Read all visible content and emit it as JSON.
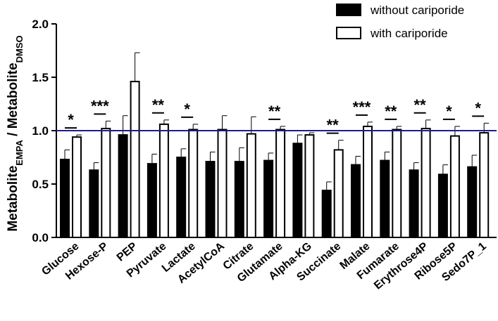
{
  "chart_data": {
    "type": "bar",
    "ylabel": {
      "parts": [
        {
          "text": "Metabolite",
          "sub": false
        },
        {
          "text": "EMPA",
          "sub": true
        },
        {
          "text": " / Metabolite",
          "sub": false
        },
        {
          "text": "DMSO",
          "sub": true
        }
      ]
    },
    "xlabel": "",
    "ylim": [
      0,
      2.0
    ],
    "yticks": [
      "0.0",
      "0.5",
      "1.0",
      "1.5",
      "2.0"
    ],
    "ytick_values": [
      0,
      0.5,
      1.0,
      1.5,
      2.0
    ],
    "reference_line": 1.0,
    "categories": [
      "Glucose",
      "Hexose-P",
      "PEP",
      "Pyruvate",
      "Lactate",
      "AcetylCoA",
      "Citrate",
      "Glutamate",
      "Alpha-KG",
      "Succinate",
      "Malate",
      "Fumarate",
      "Erythrose4P",
      "Ribose5P",
      "Sedo7P_1"
    ],
    "series": [
      {
        "name": "without cariporide",
        "fill": "#000000",
        "values": [
          0.73,
          0.63,
          0.96,
          0.69,
          0.75,
          0.71,
          0.71,
          0.72,
          0.88,
          0.44,
          0.68,
          0.72,
          0.63,
          0.59,
          0.66
        ],
        "errors": [
          0.09,
          0.07,
          0.18,
          0.09,
          0.08,
          0.09,
          0.13,
          0.07,
          0.08,
          0.08,
          0.08,
          0.08,
          0.07,
          0.09,
          0.11
        ]
      },
      {
        "name": "with cariporide",
        "fill": "#ffffff",
        "values": [
          0.94,
          1.02,
          1.46,
          1.06,
          1.01,
          1.01,
          0.97,
          1.01,
          0.96,
          0.82,
          1.04,
          1.01,
          1.02,
          0.95,
          0.98
        ],
        "errors": [
          0.02,
          0.07,
          0.27,
          0.04,
          0.05,
          0.13,
          0.16,
          0.03,
          0.02,
          0.09,
          0.04,
          0.03,
          0.08,
          0.09,
          0.09
        ]
      }
    ],
    "significance": [
      "*",
      "***",
      "",
      "**",
      "*",
      "",
      "",
      "**",
      "",
      "**",
      "***",
      "**",
      "**",
      "*",
      "*"
    ],
    "legend": {
      "position": "top-right"
    },
    "colors": {
      "axis": "#000000",
      "reference": "#1c1c8c"
    }
  }
}
